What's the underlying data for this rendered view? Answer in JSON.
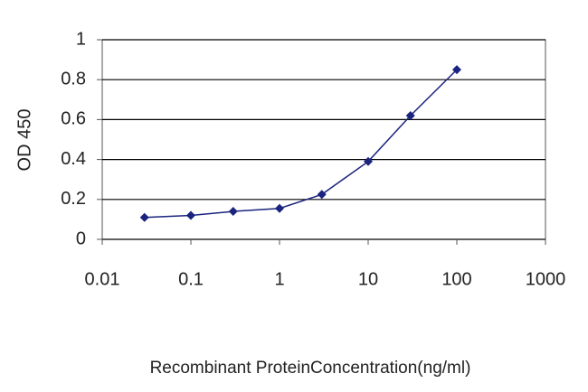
{
  "chart_data": {
    "type": "line",
    "x_label": "Recombinant ProteinConcentration(ng/ml)",
    "y_label": "OD 450",
    "x": [
      0.03,
      0.1,
      0.3,
      1,
      3,
      10,
      30,
      100
    ],
    "series": [
      {
        "color": "#1a237e",
        "values": [
          0.11,
          0.12,
          0.14,
          0.155,
          0.225,
          0.39,
          0.62,
          0.85
        ]
      }
    ],
    "xlim": [
      0.01,
      1000
    ],
    "xticks": [
      0.01,
      0.1,
      1,
      10,
      100,
      1000
    ],
    "xscale": "log",
    "ylim": [
      0,
      1
    ],
    "yticks": [
      0,
      0.2,
      0.4,
      0.6,
      0.8,
      1
    ],
    "grid": true
  }
}
